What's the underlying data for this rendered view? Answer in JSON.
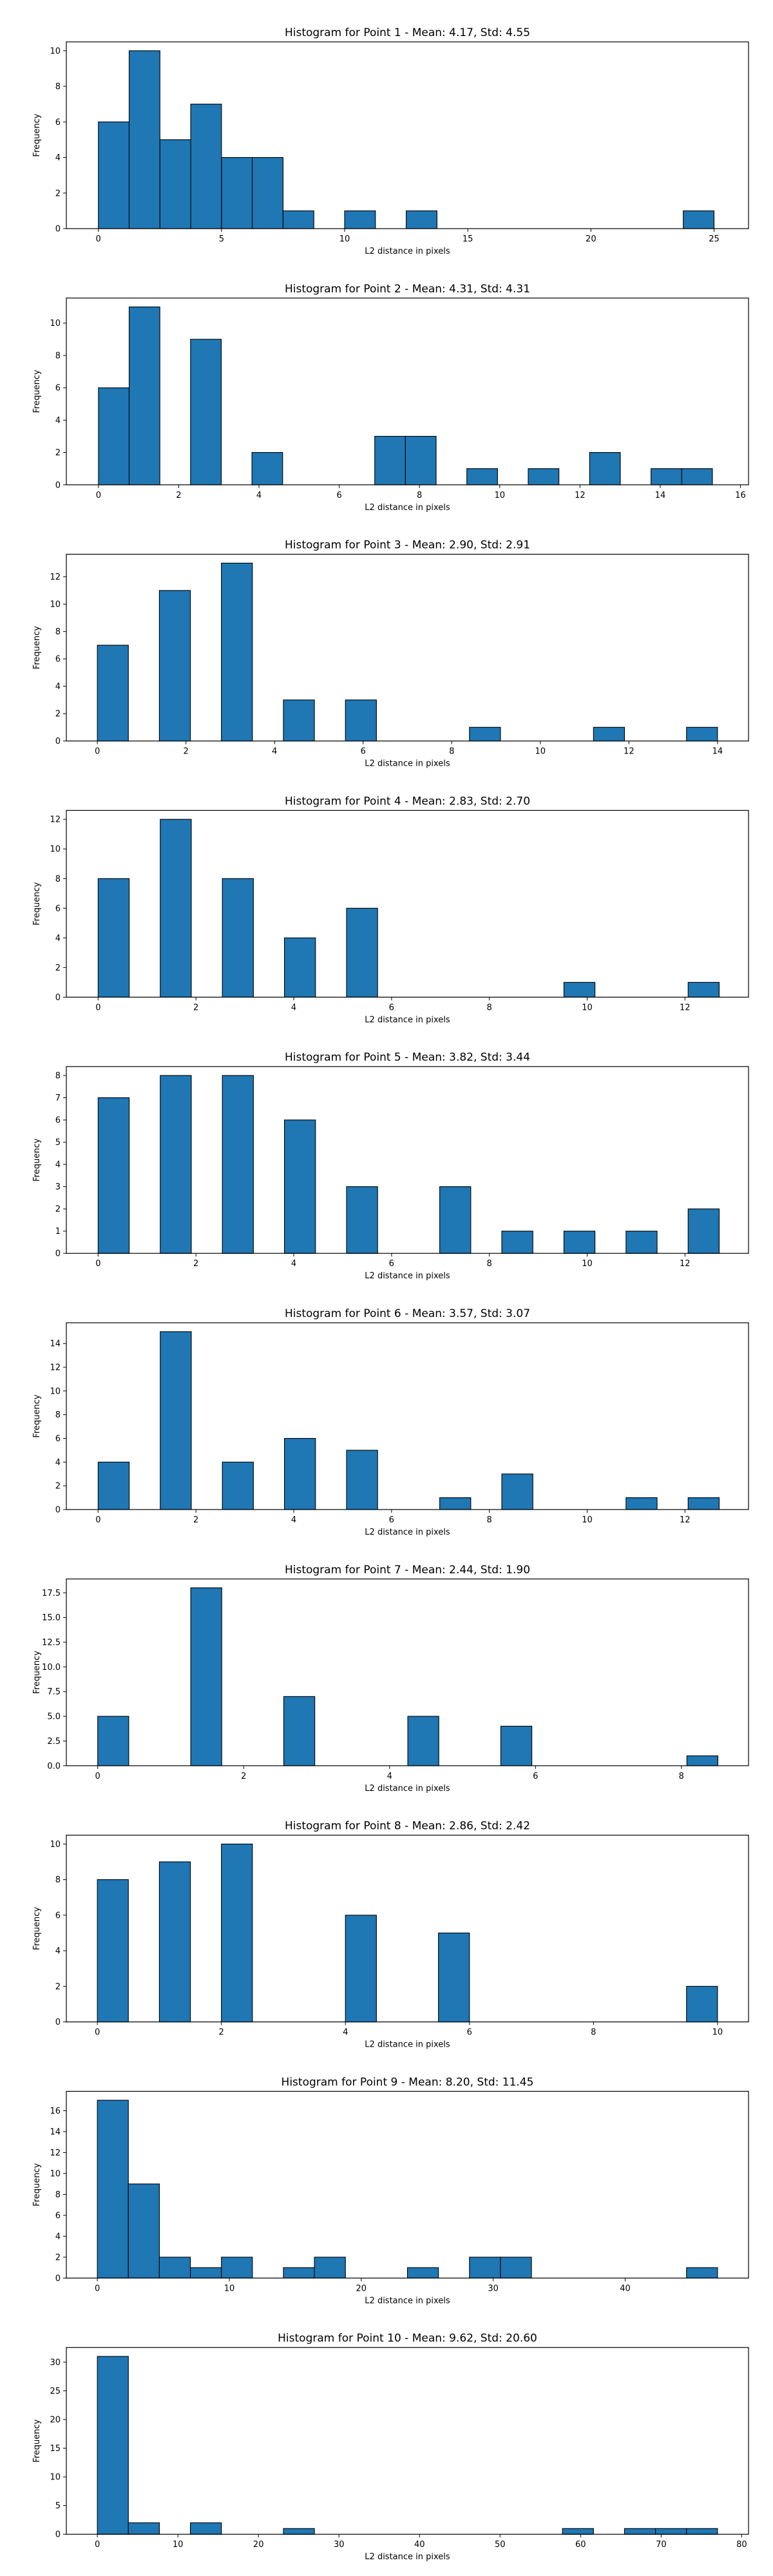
{
  "style": {
    "bar_color": "#1f77b4",
    "edge_color": "#000000",
    "background": "#ffffff"
  },
  "chart_data": [
    {
      "type": "bar",
      "title": "Histogram for Point 1 - Mean: 4.17, Std: 4.55",
      "xlabel": "L2 distance in pixels",
      "ylabel": "Frequency",
      "xlim": [
        -1.3,
        26.4
      ],
      "ylim": [
        0,
        10.5
      ],
      "xticks": [
        0,
        5,
        10,
        15,
        20,
        25
      ],
      "xtick_labels": [
        "0",
        "5",
        "10",
        "15",
        "20",
        "25"
      ],
      "yticks": [
        0,
        2,
        4,
        6,
        8,
        10
      ],
      "ytick_labels": [
        "0",
        "2",
        "4",
        "6",
        "8",
        "10"
      ],
      "bin_edges": [
        0.0,
        1.25,
        2.5,
        3.75,
        5.0,
        6.25,
        7.5,
        8.75,
        10.0,
        11.25,
        12.5,
        13.75,
        15.0,
        16.25,
        17.5,
        18.75,
        20.0,
        21.25,
        22.5,
        23.75,
        25.0
      ],
      "counts": [
        6,
        10,
        5,
        7,
        4,
        4,
        1,
        0,
        1,
        0,
        1,
        0,
        0,
        0,
        0,
        0,
        0,
        0,
        0,
        1
      ]
    },
    {
      "type": "bar",
      "title": "Histogram for Point 2 - Mean: 4.31, Std: 4.31",
      "xlabel": "L2 distance in pixels",
      "ylabel": "Frequency",
      "xlim": [
        -0.8,
        16.2
      ],
      "ylim": [
        0,
        11.55
      ],
      "xticks": [
        0,
        2,
        4,
        6,
        8,
        10,
        12,
        14,
        16
      ],
      "xtick_labels": [
        "0",
        "2",
        "4",
        "6",
        "8",
        "10",
        "12",
        "14",
        "16"
      ],
      "yticks": [
        0,
        2,
        4,
        6,
        8,
        10
      ],
      "ytick_labels": [
        "0",
        "2",
        "4",
        "6",
        "8",
        "10"
      ],
      "bin_edges": [
        0.0,
        0.765,
        1.53,
        2.295,
        3.06,
        3.825,
        4.59,
        5.355,
        6.12,
        6.885,
        7.65,
        8.415,
        9.18,
        9.945,
        10.71,
        11.475,
        12.24,
        13.005,
        13.77,
        14.535,
        15.3
      ],
      "counts": [
        6,
        11,
        0,
        9,
        0,
        2,
        0,
        0,
        0,
        3,
        3,
        0,
        1,
        0,
        1,
        0,
        2,
        0,
        1,
        1
      ]
    },
    {
      "type": "bar",
      "title": "Histogram for Point 3 - Mean: 2.90, Std: 2.91",
      "xlabel": "L2 distance in pixels",
      "ylabel": "Frequency",
      "xlim": [
        -0.7,
        14.7
      ],
      "ylim": [
        0,
        13.65
      ],
      "xticks": [
        0,
        2,
        4,
        6,
        8,
        10,
        12,
        14
      ],
      "xtick_labels": [
        "0",
        "2",
        "4",
        "6",
        "8",
        "10",
        "12",
        "14"
      ],
      "yticks": [
        0,
        2,
        4,
        6,
        8,
        10,
        12
      ],
      "ytick_labels": [
        "0",
        "2",
        "4",
        "6",
        "8",
        "10",
        "12"
      ],
      "bin_edges": [
        0.0,
        0.7,
        1.4,
        2.1,
        2.8,
        3.5,
        4.2,
        4.9,
        5.6,
        6.3,
        7.0,
        7.7,
        8.4,
        9.1,
        9.8,
        10.5,
        11.2,
        11.9,
        12.6,
        13.3,
        14.0
      ],
      "counts": [
        7,
        0,
        11,
        0,
        13,
        0,
        3,
        0,
        3,
        0,
        0,
        0,
        1,
        0,
        0,
        0,
        1,
        0,
        0,
        1
      ]
    },
    {
      "type": "bar",
      "title": "Histogram for Point 4 - Mean: 2.83, Std: 2.70",
      "xlabel": "L2 distance in pixels",
      "ylabel": "Frequency",
      "xlim": [
        -0.65,
        13.3
      ],
      "ylim": [
        0,
        12.6
      ],
      "xticks": [
        0,
        2,
        4,
        6,
        8,
        10,
        12
      ],
      "xtick_labels": [
        "0",
        "2",
        "4",
        "6",
        "8",
        "10",
        "12"
      ],
      "yticks": [
        0,
        2,
        4,
        6,
        8,
        10,
        12
      ],
      "ytick_labels": [
        "0",
        "2",
        "4",
        "6",
        "8",
        "10",
        "12"
      ],
      "bin_edges": [
        0.0,
        0.635,
        1.27,
        1.905,
        2.54,
        3.175,
        3.81,
        4.445,
        5.08,
        5.715,
        6.35,
        6.985,
        7.62,
        8.255,
        8.89,
        9.525,
        10.16,
        10.795,
        11.43,
        12.065,
        12.7
      ],
      "counts": [
        8,
        0,
        12,
        0,
        8,
        0,
        4,
        0,
        6,
        0,
        0,
        0,
        0,
        0,
        0,
        1,
        0,
        0,
        0,
        1
      ]
    },
    {
      "type": "bar",
      "title": "Histogram for Point 5 - Mean: 3.82, Std: 3.44",
      "xlabel": "L2 distance in pixels",
      "ylabel": "Frequency",
      "xlim": [
        -0.65,
        13.3
      ],
      "ylim": [
        0,
        8.4
      ],
      "xticks": [
        0,
        2,
        4,
        6,
        8,
        10,
        12
      ],
      "xtick_labels": [
        "0",
        "2",
        "4",
        "6",
        "8",
        "10",
        "12"
      ],
      "yticks": [
        0,
        1,
        2,
        3,
        4,
        5,
        6,
        7,
        8
      ],
      "ytick_labels": [
        "0",
        "1",
        "2",
        "3",
        "4",
        "5",
        "6",
        "7",
        "8"
      ],
      "bin_edges": [
        0.0,
        0.635,
        1.27,
        1.905,
        2.54,
        3.175,
        3.81,
        4.445,
        5.08,
        5.715,
        6.35,
        6.985,
        7.62,
        8.255,
        8.89,
        9.525,
        10.16,
        10.795,
        11.43,
        12.065,
        12.7
      ],
      "counts": [
        7,
        0,
        8,
        0,
        8,
        0,
        6,
        0,
        3,
        0,
        0,
        3,
        0,
        1,
        0,
        1,
        0,
        1,
        0,
        2
      ]
    },
    {
      "type": "bar",
      "title": "Histogram for Point 6 - Mean: 3.57, Std: 3.07",
      "xlabel": "L2 distance in pixels",
      "ylabel": "Frequency",
      "xlim": [
        -0.65,
        13.3
      ],
      "ylim": [
        0,
        15.75
      ],
      "xticks": [
        0,
        2,
        4,
        6,
        8,
        10,
        12
      ],
      "xtick_labels": [
        "0",
        "2",
        "4",
        "6",
        "8",
        "10",
        "12"
      ],
      "yticks": [
        0,
        2,
        4,
        6,
        8,
        10,
        12,
        14
      ],
      "ytick_labels": [
        "0",
        "2",
        "4",
        "6",
        "8",
        "10",
        "12",
        "14"
      ],
      "bin_edges": [
        0.0,
        0.635,
        1.27,
        1.905,
        2.54,
        3.175,
        3.81,
        4.445,
        5.08,
        5.715,
        6.35,
        6.985,
        7.62,
        8.255,
        8.89,
        9.525,
        10.16,
        10.795,
        11.43,
        12.065,
        12.7
      ],
      "counts": [
        4,
        0,
        15,
        0,
        4,
        0,
        6,
        0,
        5,
        0,
        0,
        1,
        0,
        3,
        0,
        0,
        0,
        1,
        0,
        1
      ]
    },
    {
      "type": "bar",
      "title": "Histogram for Point 7 - Mean: 2.44, Std: 1.90",
      "xlabel": "L2 distance in pixels",
      "ylabel": "Frequency",
      "xlim": [
        -0.43,
        8.92
      ],
      "ylim": [
        0,
        18.9
      ],
      "xticks": [
        0,
        2,
        4,
        6,
        8
      ],
      "xtick_labels": [
        "0",
        "2",
        "4",
        "6",
        "8"
      ],
      "yticks": [
        0,
        2.5,
        5,
        7.5,
        10,
        12.5,
        15,
        17.5
      ],
      "ytick_labels": [
        "0.0",
        "2.5",
        "5.0",
        "7.5",
        "10.0",
        "12.5",
        "15.0",
        "17.5"
      ],
      "bin_edges": [
        0.0,
        0.425,
        0.85,
        1.275,
        1.7,
        2.125,
        2.55,
        2.975,
        3.4,
        3.825,
        4.25,
        4.675,
        5.1,
        5.525,
        5.95,
        6.375,
        6.8,
        7.225,
        7.65,
        8.075,
        8.5
      ],
      "counts": [
        5,
        0,
        0,
        18,
        0,
        0,
        7,
        0,
        0,
        0,
        5,
        0,
        0,
        4,
        0,
        0,
        0,
        0,
        0,
        1
      ]
    },
    {
      "type": "bar",
      "title": "Histogram for Point 8 - Mean: 2.86, Std: 2.42",
      "xlabel": "L2 distance in pixels",
      "ylabel": "Frequency",
      "xlim": [
        -0.5,
        10.5
      ],
      "ylim": [
        0,
        10.5
      ],
      "xticks": [
        0,
        2,
        4,
        6,
        8,
        10
      ],
      "xtick_labels": [
        "0",
        "2",
        "4",
        "6",
        "8",
        "10"
      ],
      "yticks": [
        0,
        2,
        4,
        6,
        8,
        10
      ],
      "ytick_labels": [
        "0",
        "2",
        "4",
        "6",
        "8",
        "10"
      ],
      "bin_edges": [
        0.0,
        0.5,
        1.0,
        1.5,
        2.0,
        2.5,
        3.0,
        3.5,
        4.0,
        4.5,
        5.0,
        5.5,
        6.0,
        6.5,
        7.0,
        7.5,
        8.0,
        8.5,
        9.0,
        9.5,
        10.0
      ],
      "counts": [
        8,
        0,
        9,
        0,
        10,
        0,
        0,
        0,
        6,
        0,
        0,
        5,
        0,
        0,
        0,
        0,
        0,
        0,
        0,
        2
      ]
    },
    {
      "type": "bar",
      "title": "Histogram for Point 9 - Mean: 8.20, Std: 11.45",
      "xlabel": "L2 distance in pixels",
      "ylabel": "Frequency",
      "xlim": [
        -2.35,
        49.35
      ],
      "ylim": [
        0,
        17.85
      ],
      "xticks": [
        0,
        10,
        20,
        30,
        40
      ],
      "xtick_labels": [
        "0",
        "10",
        "20",
        "30",
        "40"
      ],
      "yticks": [
        0,
        2,
        4,
        6,
        8,
        10,
        12,
        14,
        16
      ],
      "ytick_labels": [
        "0",
        "2",
        "4",
        "6",
        "8",
        "10",
        "12",
        "14",
        "16"
      ],
      "bin_edges": [
        0.0,
        2.35,
        4.7,
        7.05,
        9.4,
        11.75,
        14.1,
        16.45,
        18.8,
        21.15,
        23.5,
        25.85,
        28.2,
        30.55,
        32.9,
        35.25,
        37.6,
        39.95,
        42.3,
        44.65,
        47.0
      ],
      "counts": [
        17,
        9,
        2,
        1,
        2,
        0,
        1,
        2,
        0,
        0,
        1,
        0,
        2,
        2,
        0,
        0,
        0,
        0,
        0,
        1
      ]
    },
    {
      "type": "bar",
      "title": "Histogram for Point 10 - Mean: 9.62, Std: 20.60",
      "xlabel": "L2 distance in pixels",
      "ylabel": "Frequency",
      "xlim": [
        -3.85,
        80.85
      ],
      "ylim": [
        0,
        32.55
      ],
      "xticks": [
        0,
        10,
        20,
        30,
        40,
        50,
        60,
        70,
        80
      ],
      "xtick_labels": [
        "0",
        "10",
        "20",
        "30",
        "40",
        "50",
        "60",
        "70",
        "80"
      ],
      "yticks": [
        0,
        5,
        10,
        15,
        20,
        25,
        30
      ],
      "ytick_labels": [
        "0",
        "5",
        "10",
        "15",
        "20",
        "25",
        "30"
      ],
      "bin_edges": [
        0.0,
        3.85,
        7.7,
        11.55,
        15.4,
        19.25,
        23.1,
        26.95,
        30.8,
        34.65,
        38.5,
        42.35,
        46.2,
        50.05,
        53.9,
        57.75,
        61.6,
        65.45,
        69.3,
        73.15,
        77.0
      ],
      "counts": [
        31,
        2,
        0,
        2,
        0,
        0,
        1,
        0,
        0,
        0,
        0,
        0,
        0,
        0,
        0,
        1,
        0,
        1,
        1,
        1
      ]
    }
  ]
}
